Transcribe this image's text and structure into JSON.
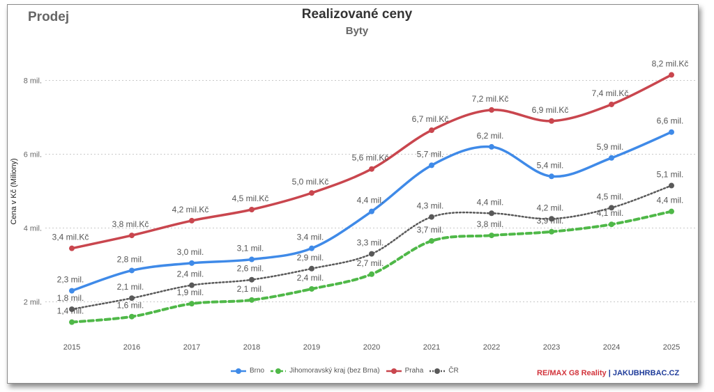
{
  "corner_label": "Prodej",
  "brand": {
    "part1": "RE/MAX G8 Reality",
    "separator": " | ",
    "part2": "JAKUBHRBAC.CZ"
  },
  "chart_data": {
    "type": "line",
    "title": "Realizované ceny",
    "subtitle": "Byty",
    "ylabel": "Cena v Kč (Miliony)",
    "xlabel": "",
    "x": [
      "2015",
      "2016",
      "2017",
      "2018",
      "2019",
      "2020",
      "2021",
      "2022",
      "2023",
      "2024",
      "2025"
    ],
    "ylim": [
      1.2,
      8.6
    ],
    "yticks": [
      2,
      4,
      6,
      8
    ],
    "ytick_labels": [
      "2 mil.",
      "4 mil.",
      "6 mil.",
      "8 mil."
    ],
    "grid": true,
    "legend_position": "bottom",
    "series": [
      {
        "name": "Brno",
        "color": "#3f8ae8",
        "dash": "solid",
        "values": [
          2.3,
          2.85,
          3.05,
          3.15,
          3.45,
          4.45,
          5.7,
          6.2,
          5.4,
          5.9,
          6.6
        ],
        "labels": [
          "2,3 mil.",
          "2,8 mil.",
          "3,0 mil.",
          "3,1 mil.",
          "3,4 mil.",
          "4,4 mil.",
          "5,7 mil.",
          "6,2 mil.",
          "5,4 mil.",
          "5,9 mil.",
          "6,6 mil."
        ]
      },
      {
        "name": "Jihomoravský kraj (bez Brna)",
        "color": "#4fb848",
        "dash": "dashed",
        "values": [
          1.45,
          1.6,
          1.95,
          2.05,
          2.35,
          2.75,
          3.65,
          3.8,
          3.9,
          4.1,
          4.45
        ],
        "labels": [
          "1,4 mil.",
          "1,6 mil.",
          "1,9 mil.",
          "2,1 mil.",
          "2,4 mil.",
          "2,7 mil.",
          "3,7 mil.",
          "3,8 mil.",
          "3,9 mil.",
          "4,1 mil.",
          "4,4 mil."
        ]
      },
      {
        "name": "Praha",
        "color": "#c9464e",
        "dash": "solid",
        "values": [
          3.45,
          3.8,
          4.2,
          4.5,
          4.95,
          5.6,
          6.65,
          7.2,
          6.9,
          7.35,
          8.15
        ],
        "labels": [
          "3,4 mil.Kč",
          "3,8 mil.Kč",
          "4,2 mil.Kč",
          "4,5 mil.Kč",
          "5,0 mil.Kč",
          "5,6 mil.Kč",
          "6,7 mil.Kč",
          "7,2 mil.Kč",
          "6,9 mil.Kč",
          "7,4 mil.Kč",
          "8,2 mil.Kč"
        ]
      },
      {
        "name": "ČR",
        "color": "#595959",
        "dash": "dotted",
        "values": [
          1.8,
          2.1,
          2.45,
          2.6,
          2.9,
          3.3,
          4.3,
          4.4,
          4.25,
          4.55,
          5.15
        ],
        "labels": [
          "1,8 mil.",
          "2,1 mil.",
          "2,4 mil.",
          "2,6 mil.",
          "2,9 mil.",
          "3,3 mil.",
          "4,3 mil.",
          "4,4 mil.",
          "4,2 mil.",
          "4,5 mil.",
          "5,1 mil."
        ]
      }
    ]
  }
}
